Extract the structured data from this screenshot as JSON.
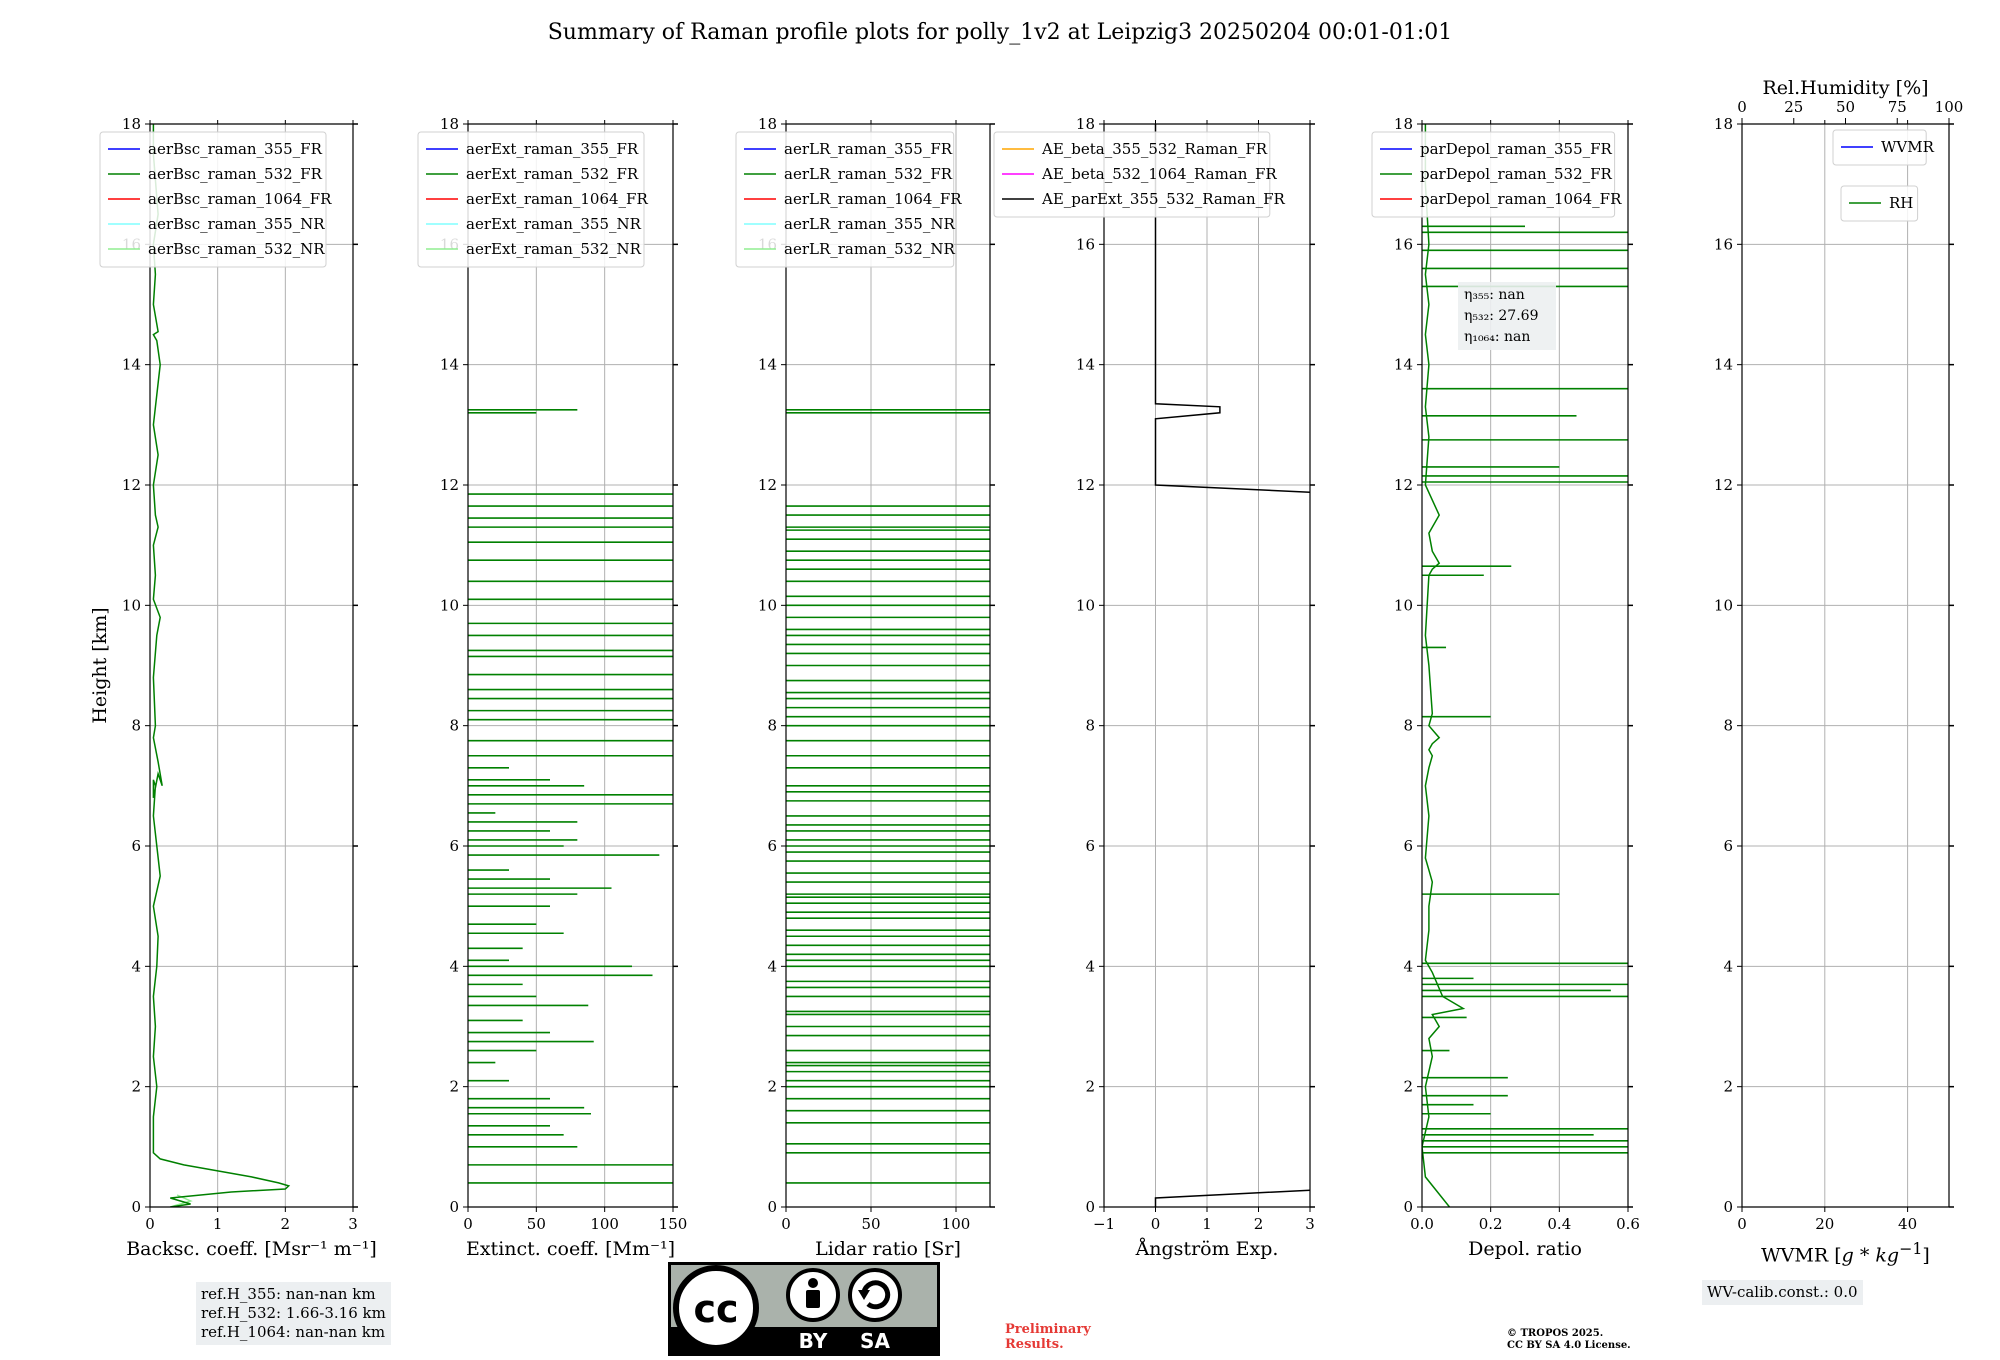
{
  "title": "Summary of Raman profile plots for polly_1v2 at Leipzig3 20250204 00:01-01:01",
  "colors": {
    "c355_FR": "#0000ff",
    "c532_FR": "#008000",
    "c1064_FR": "#ff0000",
    "c355_NR": "#80ffff",
    "c532_NR": "#90ee90",
    "ae1": "#ffa500",
    "ae2": "#ff00ff",
    "ae3": "#000000",
    "grid": "#b0b0b0"
  },
  "chart_data": [
    {
      "type": "line",
      "id": "bsc",
      "xlabel": "Backsc. coeff. [Msr⁻¹ m⁻¹]",
      "ylabel": "Height [km]",
      "xlim": [
        0,
        3
      ],
      "ylim": [
        0,
        18
      ],
      "xticks": [
        "0",
        "1",
        "2",
        "3"
      ],
      "xtickvals": [
        0,
        1,
        2,
        3
      ],
      "yticks": [
        "0",
        "2",
        "4",
        "6",
        "8",
        "10",
        "12",
        "14",
        "16",
        "18"
      ],
      "legend": [
        "aerBsc_raman_355_FR",
        "aerBsc_raman_532_FR",
        "aerBsc_raman_1064_FR",
        "aerBsc_raman_355_NR",
        "aerBsc_raman_532_NR"
      ],
      "legend_colors": [
        "c355_FR",
        "c532_FR",
        "c1064_FR",
        "c355_NR",
        "c532_NR"
      ],
      "series": [
        {
          "name": "aerBsc_raman_532_NR",
          "color": "c532_NR",
          "x": [
            0.3,
            0.6,
            0.4
          ],
          "y": [
            0.0,
            0.1,
            0.2
          ]
        },
        {
          "name": "aerBsc_raman_532_FR",
          "color": "c532_FR",
          "x": [
            0.3,
            0.6,
            0.3,
            1.2,
            2.0,
            2.05,
            1.9,
            1.5,
            1.0,
            0.5,
            0.15,
            0.05,
            0.05,
            0.1,
            0.05,
            0.08,
            0.05,
            0.1,
            0.12,
            0.05,
            0.15,
            0.1,
            0.05,
            0.08,
            0.05,
            0.05,
            0.12,
            0.18,
            0.12,
            0.05,
            0.08,
            0.05,
            0.1,
            0.15,
            0.05,
            0.08,
            0.05,
            0.12,
            0.08,
            0.05,
            0.12,
            0.05,
            0.1,
            0.15,
            0.1,
            0.05,
            0.12,
            0.05,
            0.08,
            0.05,
            0.12,
            0.05,
            0.05
          ],
          "y": [
            0.0,
            0.05,
            0.15,
            0.25,
            0.3,
            0.35,
            0.4,
            0.5,
            0.6,
            0.7,
            0.8,
            0.9,
            1.5,
            2.0,
            2.5,
            3.0,
            3.5,
            4.0,
            4.5,
            5.0,
            5.5,
            6.0,
            6.5,
            7.0,
            7.1,
            6.8,
            7.2,
            7.0,
            7.4,
            7.8,
            8.0,
            8.8,
            9.5,
            9.8,
            10.1,
            10.5,
            11.0,
            11.3,
            11.5,
            12.0,
            12.5,
            13.0,
            13.5,
            14.0,
            14.4,
            14.5,
            14.55,
            15.0,
            15.5,
            16.0,
            16.5,
            17.5,
            18.0
          ]
        }
      ]
    },
    {
      "type": "line",
      "id": "ext",
      "xlabel": "Extinct. coeff. [Mm⁻¹]",
      "xlim": [
        0,
        150
      ],
      "ylim": [
        0,
        18
      ],
      "xticks": [
        "0",
        "50",
        "100",
        "150"
      ],
      "xtickvals": [
        0,
        50,
        100,
        150
      ],
      "yticks": [
        "0",
        "2",
        "4",
        "6",
        "8",
        "10",
        "12",
        "14",
        "16",
        "18"
      ],
      "legend": [
        "aerExt_raman_355_FR",
        "aerExt_raman_532_FR",
        "aerExt_raman_1064_FR",
        "aerExt_raman_355_NR",
        "aerExt_raman_532_NR"
      ],
      "legend_colors": [
        "c355_FR",
        "c532_FR",
        "c1064_FR",
        "c355_NR",
        "c532_NR"
      ],
      "spikes": [
        [
          0.4,
          150
        ],
        [
          0.7,
          150
        ],
        [
          1.0,
          80
        ],
        [
          1.2,
          70
        ],
        [
          1.35,
          60
        ],
        [
          1.55,
          90
        ],
        [
          1.65,
          85
        ],
        [
          1.8,
          60
        ],
        [
          2.1,
          30
        ],
        [
          2.4,
          20
        ],
        [
          2.6,
          50
        ],
        [
          2.75,
          92
        ],
        [
          2.9,
          60
        ],
        [
          3.1,
          40
        ],
        [
          3.35,
          88
        ],
        [
          3.5,
          50
        ],
        [
          3.7,
          40
        ],
        [
          3.85,
          135
        ],
        [
          4.0,
          120
        ],
        [
          4.1,
          30
        ],
        [
          4.3,
          40
        ],
        [
          4.55,
          70
        ],
        [
          4.7,
          50
        ],
        [
          5.0,
          60
        ],
        [
          5.2,
          80
        ],
        [
          5.3,
          105
        ],
        [
          5.45,
          60
        ],
        [
          5.6,
          30
        ],
        [
          5.85,
          140
        ],
        [
          6.0,
          70
        ],
        [
          6.1,
          80
        ],
        [
          6.25,
          60
        ],
        [
          6.4,
          80
        ],
        [
          6.55,
          20
        ],
        [
          6.7,
          150
        ],
        [
          6.85,
          150
        ],
        [
          7.0,
          85
        ],
        [
          7.1,
          60
        ],
        [
          7.3,
          30
        ],
        [
          7.5,
          150
        ],
        [
          7.75,
          150
        ],
        [
          8.1,
          150
        ],
        [
          8.25,
          150
        ],
        [
          8.45,
          150
        ],
        [
          8.6,
          150
        ],
        [
          8.85,
          150
        ],
        [
          9.15,
          150
        ],
        [
          9.25,
          150
        ],
        [
          9.5,
          150
        ],
        [
          9.7,
          150
        ],
        [
          10.1,
          150
        ],
        [
          10.4,
          150
        ],
        [
          10.75,
          150
        ],
        [
          11.05,
          150
        ],
        [
          11.3,
          150
        ],
        [
          11.45,
          150
        ],
        [
          11.65,
          150
        ],
        [
          11.85,
          150
        ],
        [
          13.25,
          80
        ],
        [
          13.2,
          50
        ]
      ]
    },
    {
      "type": "line",
      "id": "lr",
      "xlabel": "Lidar ratio [Sr]",
      "xlim": [
        0,
        120
      ],
      "ylim": [
        0,
        18
      ],
      "xticks": [
        "0",
        "50",
        "100"
      ],
      "xtickvals": [
        0,
        50,
        100
      ],
      "yticks": [
        "0",
        "2",
        "4",
        "6",
        "8",
        "10",
        "12",
        "14",
        "16",
        "18"
      ],
      "legend": [
        "aerLR_raman_355_FR",
        "aerLR_raman_532_FR",
        "aerLR_raman_1064_FR",
        "aerLR_raman_355_NR",
        "aerLR_raman_532_NR"
      ],
      "legend_colors": [
        "c355_FR",
        "c532_FR",
        "c1064_FR",
        "c355_NR",
        "c532_NR"
      ],
      "lines": [
        0.4,
        0.9,
        1.05,
        1.4,
        1.6,
        1.8,
        2.0,
        2.1,
        2.25,
        2.35,
        2.4,
        2.6,
        2.85,
        3.0,
        3.2,
        3.25,
        3.5,
        3.65,
        3.75,
        4.0,
        4.1,
        4.2,
        4.35,
        4.5,
        4.6,
        4.8,
        4.9,
        5.05,
        5.15,
        5.2,
        5.4,
        5.55,
        5.75,
        5.9,
        6.0,
        6.1,
        6.25,
        6.35,
        6.5,
        6.75,
        6.9,
        7.0,
        7.3,
        7.5,
        7.75,
        8.0,
        8.15,
        8.3,
        8.45,
        8.55,
        8.75,
        9.0,
        9.2,
        9.35,
        9.5,
        9.6,
        9.8,
        10.0,
        10.15,
        10.4,
        10.6,
        10.75,
        10.9,
        11.1,
        11.25,
        11.3,
        11.5,
        11.65,
        13.2,
        13.25
      ],
      "line_x": 120
    },
    {
      "type": "line",
      "id": "ae",
      "xlabel": "Ångström Exp.",
      "xlim": [
        -1,
        3
      ],
      "ylim": [
        0,
        18
      ],
      "xticks": [
        "−1",
        "0",
        "1",
        "2",
        "3"
      ],
      "xtickvals": [
        -1,
        0,
        1,
        2,
        3
      ],
      "yticks": [
        "0",
        "2",
        "4",
        "6",
        "8",
        "10",
        "12",
        "14",
        "16",
        "18"
      ],
      "legend": [
        "AE_beta_355_532_Raman_FR",
        "AE_beta_532_1064_Raman_FR",
        "AE_parExt_355_532_Raman_FR"
      ],
      "legend_colors": [
        "ae1",
        "ae2",
        "ae3"
      ],
      "series": [
        {
          "name": "AE_parExt_355_532_Raman_FR",
          "color": "ae3",
          "x": [
            0.0,
            0.0,
            3.0
          ],
          "y": [
            0.0,
            0.15,
            0.28
          ]
        },
        {
          "name": "AE_parExt_355_532_Raman_FR",
          "color": "ae3",
          "x": [
            3.0,
            0.0,
            0.0,
            1.25,
            1.25,
            0.0,
            0.0
          ],
          "y": [
            11.88,
            12.0,
            13.1,
            13.2,
            13.3,
            13.35,
            18.0
          ]
        }
      ]
    },
    {
      "type": "line",
      "id": "depol",
      "xlabel": "Depol. ratio",
      "xlim": [
        0,
        0.6
      ],
      "ylim": [
        0,
        18
      ],
      "xticks": [
        "0.0",
        "0.2",
        "0.4",
        "0.6"
      ],
      "xtickvals": [
        0,
        0.2,
        0.4,
        0.6
      ],
      "yticks": [
        "0",
        "2",
        "4",
        "6",
        "8",
        "10",
        "12",
        "14",
        "16",
        "18"
      ],
      "legend": [
        "parDepol_raman_355_FR",
        "parDepol_raman_532_FR",
        "parDepol_raman_1064_FR"
      ],
      "legend_colors": [
        "c355_FR",
        "c532_FR",
        "c1064_FR"
      ],
      "annotation": [
        "η₃₅₅: nan",
        "η₅₃₂: 27.69",
        "η₁₀₆₄: nan"
      ],
      "series": [
        {
          "name": "parDepol_raman_532_FR",
          "color": "c532_FR",
          "x": [
            0.08,
            0.01,
            0.0,
            0.02,
            0.01,
            0.03,
            0.02,
            0.05,
            0.03,
            0.12,
            0.06,
            0.03,
            0.01,
            0.02,
            0.02,
            0.03,
            0.02,
            0.01,
            0.02,
            0.01,
            0.02,
            0.03,
            0.02,
            0.03,
            0.05,
            0.02,
            0.03,
            0.02,
            0.01,
            0.02,
            0.03,
            0.05,
            0.03,
            0.02,
            0.05,
            0.01,
            0.02,
            0.01,
            0.02,
            0.01,
            0.02,
            0.01,
            0.02,
            0.01,
            0.01
          ],
          "y": [
            0.0,
            0.5,
            1.0,
            1.5,
            2.0,
            2.5,
            2.8,
            3.0,
            3.2,
            3.3,
            3.5,
            3.9,
            4.1,
            4.6,
            5.0,
            5.4,
            5.6,
            5.8,
            6.5,
            7.0,
            7.3,
            7.5,
            7.6,
            7.7,
            7.8,
            8.0,
            8.2,
            9.0,
            9.5,
            10.5,
            10.6,
            10.7,
            10.9,
            11.2,
            11.5,
            12.0,
            12.8,
            13.3,
            14.0,
            14.5,
            15.0,
            15.5,
            16.0,
            17.0,
            18.0
          ]
        }
      ],
      "spikes": [
        [
          0.9,
          0.6
        ],
        [
          1.0,
          0.6
        ],
        [
          1.1,
          0.6
        ],
        [
          1.2,
          0.5
        ],
        [
          1.3,
          0.6
        ],
        [
          1.55,
          0.2
        ],
        [
          1.7,
          0.15
        ],
        [
          1.85,
          0.25
        ],
        [
          2.15,
          0.25
        ],
        [
          2.6,
          0.08
        ],
        [
          3.15,
          0.13
        ],
        [
          3.5,
          0.6
        ],
        [
          3.6,
          0.55
        ],
        [
          3.7,
          0.6
        ],
        [
          3.8,
          0.15
        ],
        [
          4.05,
          0.6
        ],
        [
          5.2,
          0.4
        ],
        [
          8.15,
          0.2
        ],
        [
          9.3,
          0.07
        ],
        [
          10.5,
          0.18
        ],
        [
          10.65,
          0.26
        ],
        [
          12.05,
          0.6
        ],
        [
          12.15,
          0.6
        ],
        [
          12.3,
          0.4
        ],
        [
          12.75,
          0.6
        ],
        [
          13.15,
          0.45
        ],
        [
          13.6,
          0.6
        ],
        [
          15.3,
          0.6
        ],
        [
          15.6,
          0.6
        ],
        [
          15.9,
          0.6
        ],
        [
          16.2,
          0.6
        ],
        [
          16.3,
          0.3
        ]
      ]
    },
    {
      "type": "line",
      "id": "wv",
      "xlabel": "WVMR [g * kg⁻¹]",
      "xlabel_html": "WVMR [<i>g</i> * <i>kg</i><sup>−1</sup>]",
      "xlim": [
        0,
        50
      ],
      "ylim": [
        0,
        18
      ],
      "xticks": [
        "0",
        "20",
        "40"
      ],
      "xtickvals": [
        0,
        20,
        40
      ],
      "top_xlabel": "Rel.Humidity [%]",
      "top_xlim": [
        0,
        100
      ],
      "top_xticks": [
        "0",
        "25",
        "50",
        "75",
        "100"
      ],
      "top_xtickvals": [
        0,
        25,
        50,
        75,
        100
      ],
      "yticks": [
        "0",
        "2",
        "4",
        "6",
        "8",
        "10",
        "12",
        "14",
        "16",
        "18"
      ],
      "legend": [
        "WVMR"
      ],
      "legend_colors": [
        "c355_FR"
      ],
      "legend2": [
        "RH"
      ],
      "legend2_colors": [
        "c532_FR"
      ],
      "series": []
    }
  ],
  "ref_heights": [
    "ref.H_355: nan-nan km",
    "ref.H_532: 1.66-3.16 km",
    "ref.H_1064: nan-nan km"
  ],
  "wv_calib": "WV-calib.const.: 0.0",
  "license_badge": {
    "left": "cc",
    "by": "BY",
    "sa": "SA"
  },
  "preliminary": [
    "Preliminary",
    "Results."
  ],
  "copyright": [
    "© TROPOS 2025.",
    "CC BY SA 4.0 License."
  ]
}
